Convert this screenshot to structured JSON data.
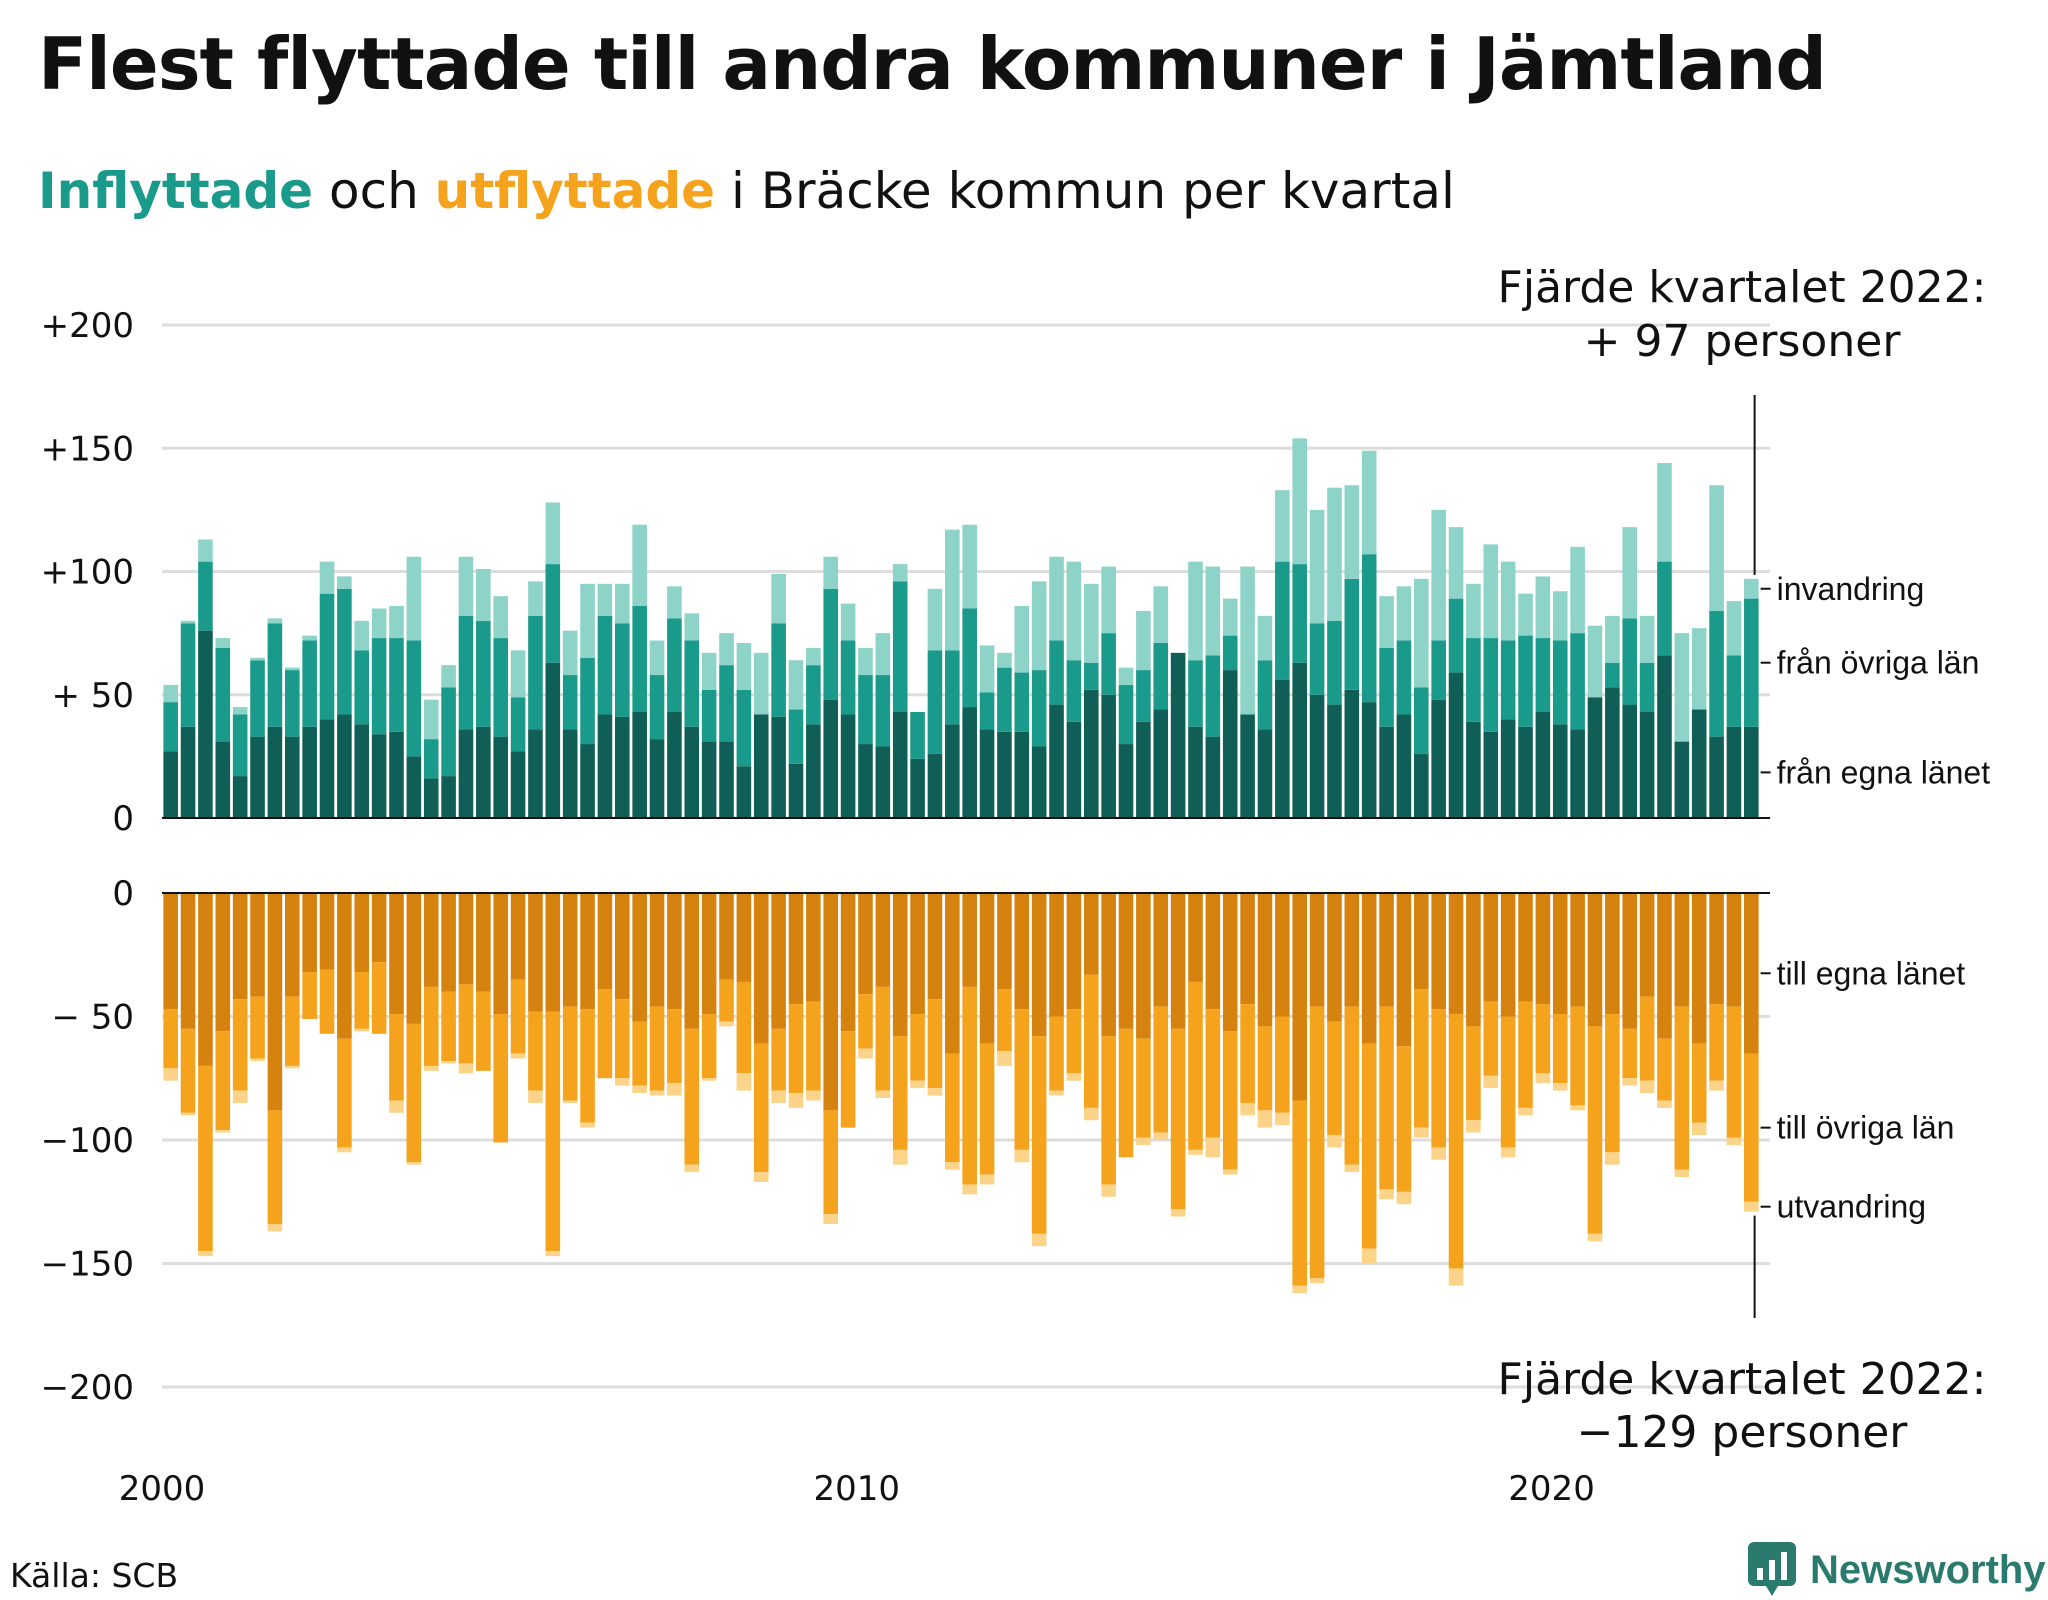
{
  "header": {
    "title": "Flest flyttade till andra kommuner i Jämtland",
    "subtitle_in": "Inflyttade",
    "subtitle_and": " och ",
    "subtitle_out": "utflyttade",
    "subtitle_rest": " i Bräcke kommun per kvartal"
  },
  "footer": {
    "source": "Källa: SCB",
    "brand": "Newsworthy"
  },
  "colors": {
    "in_own_county": "#0f5f57",
    "in_other_counties": "#1a9a8a",
    "in_immigration": "#8dd3c7",
    "out_own_county": "#d6820f",
    "out_other_counties": "#f5a21c",
    "out_emigration": "#fbd48a",
    "grid": "#dddddd",
    "brand": "#2b7a6e"
  },
  "chart_data": {
    "type": "bar",
    "stacked": true,
    "x_ticks": [
      "2000",
      "2010",
      "2020"
    ],
    "y_ticks_top": [
      "0",
      "+ 50",
      "+100",
      "+150",
      "+200"
    ],
    "y_ticks_bottom": [
      "0",
      "− 50",
      "−100",
      "−150",
      "−200"
    ],
    "ylim_top": [
      0,
      200
    ],
    "ylim_bottom": [
      -200,
      0
    ],
    "grid": true,
    "quarters": {
      "start": "2000 Q1",
      "end": "2022 Q4",
      "count": 92
    },
    "series_top": [
      {
        "name": "från egna länet",
        "values": [
          27,
          37,
          76,
          31,
          17,
          33,
          37,
          33,
          37,
          40,
          42,
          38,
          34,
          35,
          25,
          16,
          17,
          36,
          37,
          33,
          27,
          36,
          63,
          36,
          30,
          42,
          41,
          43,
          32,
          43,
          37,
          31,
          31,
          21,
          42,
          41,
          22,
          38,
          48,
          42,
          30,
          29,
          43,
          24,
          26,
          38,
          45,
          36,
          35,
          35,
          29,
          46,
          39,
          52,
          50,
          30,
          39,
          44,
          67,
          37,
          33,
          60,
          42,
          36,
          56,
          63,
          50,
          46,
          52,
          47,
          37,
          42,
          26,
          48,
          59,
          39,
          35,
          40,
          37,
          43,
          38,
          36,
          49,
          53,
          46,
          43,
          66,
          31,
          44,
          33,
          37,
          37
        ]
      },
      {
        "name": "från övriga län",
        "values": [
          20,
          42,
          28,
          38,
          25,
          31,
          42,
          27,
          35,
          51,
          51,
          30,
          39,
          38,
          47,
          16,
          36,
          46,
          43,
          40,
          22,
          46,
          40,
          22,
          35,
          40,
          38,
          43,
          26,
          38,
          35,
          21,
          31,
          31,
          0,
          38,
          22,
          24,
          45,
          30,
          28,
          29,
          53,
          19,
          42,
          30,
          40,
          15,
          26,
          24,
          31,
          26,
          25,
          11,
          25,
          24,
          21,
          27,
          0,
          27,
          33,
          14,
          0,
          28,
          48,
          40,
          29,
          34,
          45,
          60,
          32,
          30,
          27,
          24,
          30,
          34,
          38,
          32,
          37,
          30,
          34,
          39,
          0,
          10,
          35,
          20,
          38,
          0,
          0,
          51,
          29,
          52
        ]
      },
      {
        "name": "invandring",
        "values": [
          7,
          1,
          9,
          4,
          3,
          1,
          2,
          1,
          2,
          13,
          5,
          12,
          12,
          13,
          34,
          16,
          9,
          24,
          21,
          17,
          19,
          14,
          25,
          18,
          30,
          13,
          16,
          33,
          14,
          13,
          11,
          15,
          13,
          19,
          25,
          20,
          20,
          7,
          13,
          15,
          11,
          17,
          7,
          0,
          25,
          49,
          34,
          19,
          6,
          27,
          36,
          34,
          40,
          32,
          27,
          7,
          24,
          23,
          0,
          40,
          36,
          15,
          60,
          18,
          29,
          51,
          46,
          54,
          38,
          42,
          21,
          22,
          44,
          53,
          29,
          22,
          38,
          32,
          17,
          25,
          20,
          35,
          29,
          19,
          37,
          19,
          40,
          44,
          33,
          51,
          22,
          8
        ]
      }
    ],
    "series_bottom": [
      {
        "name": "till egna länet",
        "values": [
          -47,
          -55,
          -70,
          -56,
          -43,
          -42,
          -88,
          -42,
          -32,
          -31,
          -59,
          -32,
          -28,
          -49,
          -53,
          -38,
          -40,
          -37,
          -40,
          -49,
          -35,
          -48,
          -48,
          -46,
          -47,
          -39,
          -43,
          -52,
          -46,
          -47,
          -55,
          -49,
          -35,
          -36,
          -61,
          -55,
          -45,
          -44,
          -88,
          -56,
          -41,
          -38,
          -58,
          -49,
          -43,
          -65,
          -38,
          -61,
          -39,
          -47,
          -58,
          -50,
          -47,
          -33,
          -58,
          -55,
          -59,
          -46,
          -55,
          -36,
          -47,
          -56,
          -45,
          -54,
          -50,
          -84,
          -46,
          -52,
          -46,
          -61,
          -46,
          -62,
          -39,
          -47,
          -49,
          -54,
          -44,
          -50,
          -44,
          -45,
          -49,
          -46,
          -54,
          -49,
          -55,
          -42,
          -59,
          -46,
          -61,
          -45,
          -46,
          -65
        ]
      },
      {
        "name": "till övriga län",
        "values": [
          -24,
          -34,
          -75,
          -40,
          -37,
          -25,
          -46,
          -28,
          -19,
          -26,
          -44,
          -23,
          -29,
          -35,
          -56,
          -32,
          -28,
          -32,
          -32,
          -52,
          -30,
          -32,
          -97,
          -38,
          -46,
          -36,
          -32,
          -26,
          -34,
          -30,
          -55,
          -26,
          -17,
          -37,
          -52,
          -25,
          -36,
          -36,
          -42,
          -39,
          -22,
          -42,
          -46,
          -27,
          -36,
          -44,
          -80,
          -53,
          -25,
          -57,
          -80,
          -30,
          -26,
          -54,
          -60,
          -52,
          -40,
          -51,
          -73,
          -68,
          -52,
          -56,
          -40,
          -34,
          -39,
          -75,
          -110,
          -46,
          -64,
          -83,
          -74,
          -59,
          -56,
          -56,
          -103,
          -38,
          -30,
          -53,
          -43,
          -28,
          -28,
          -40,
          -84,
          -56,
          -20,
          -34,
          -25,
          -66,
          -32,
          -31,
          -53,
          -60
        ]
      },
      {
        "name": "utvandring",
        "values": [
          -5,
          -1,
          -2,
          -1,
          -5,
          -1,
          -3,
          -1,
          0,
          0,
          -2,
          -1,
          0,
          -5,
          -1,
          -2,
          -1,
          -4,
          0,
          0,
          -2,
          -5,
          -2,
          -1,
          -2,
          0,
          -3,
          -3,
          -2,
          -5,
          -3,
          -1,
          -2,
          -7,
          -4,
          -5,
          -6,
          -4,
          -4,
          0,
          -4,
          -3,
          -6,
          -3,
          -3,
          -3,
          -4,
          -4,
          -6,
          -5,
          -5,
          -2,
          -3,
          -5,
          -5,
          0,
          -3,
          -3,
          -3,
          -2,
          -8,
          -2,
          -5,
          -7,
          -5,
          -3,
          -2,
          -5,
          -3,
          -6,
          -4,
          -5,
          -4,
          -5,
          -7,
          -5,
          -5,
          -4,
          -3,
          -4,
          -3,
          -2,
          -3,
          -5,
          -3,
          -5,
          -3,
          -3,
          -5,
          -4,
          -3,
          -4
        ]
      }
    ],
    "labels_top": [
      "invandring",
      "från övriga län",
      "från egna länet"
    ],
    "labels_bottom": [
      "till egna länet",
      "till övriga län",
      "utvandring"
    ],
    "annotation_top": {
      "line1": "Fjärde kvartalet 2022:",
      "line2": "+ 97 personer"
    },
    "annotation_bottom": {
      "line1": "Fjärde kvartalet 2022:",
      "line2": "−129 personer"
    }
  }
}
